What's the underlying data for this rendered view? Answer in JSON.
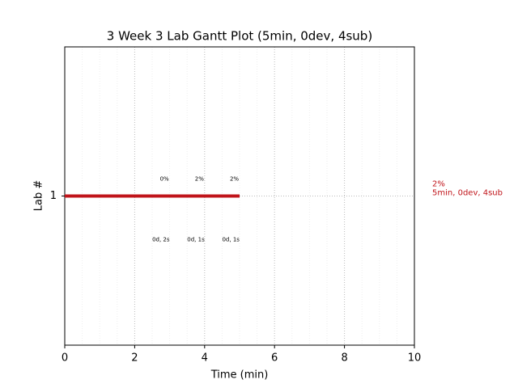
{
  "chart_data": {
    "type": "gantt",
    "title": "3 Week 3 Lab Gantt Plot (5min, 0dev, 4sub)",
    "xlabel": "Time (min)",
    "ylabel": "Lab #",
    "xlim": [
      0,
      10
    ],
    "xticks": [
      0,
      2,
      4,
      6,
      8,
      10
    ],
    "xminorticks": [
      0.5,
      1,
      1.5,
      2.5,
      3,
      3.5,
      4.5,
      5,
      5.5,
      6.5,
      7,
      7.5,
      8.5,
      9,
      9.5
    ],
    "ylim": [
      0,
      2
    ],
    "yticks": [
      1
    ],
    "grid": true,
    "bars": [
      {
        "lab": 1,
        "start": 0,
        "end": 5,
        "color": "#c0141a"
      }
    ],
    "top_annotations": [
      {
        "text": "0%",
        "x": 2.85
      },
      {
        "text": "2%",
        "x": 3.85
      },
      {
        "text": "2%",
        "x": 4.85
      }
    ],
    "bottom_annotations": [
      {
        "text": "0d, 2s",
        "x": 2.75
      },
      {
        "text": "0d, 1s",
        "x": 3.75
      },
      {
        "text": "0d, 1s",
        "x": 4.75
      }
    ],
    "side_label": [
      "2%",
      "5min, 0dev, 4sub"
    ],
    "side_color": "#c0141a"
  }
}
